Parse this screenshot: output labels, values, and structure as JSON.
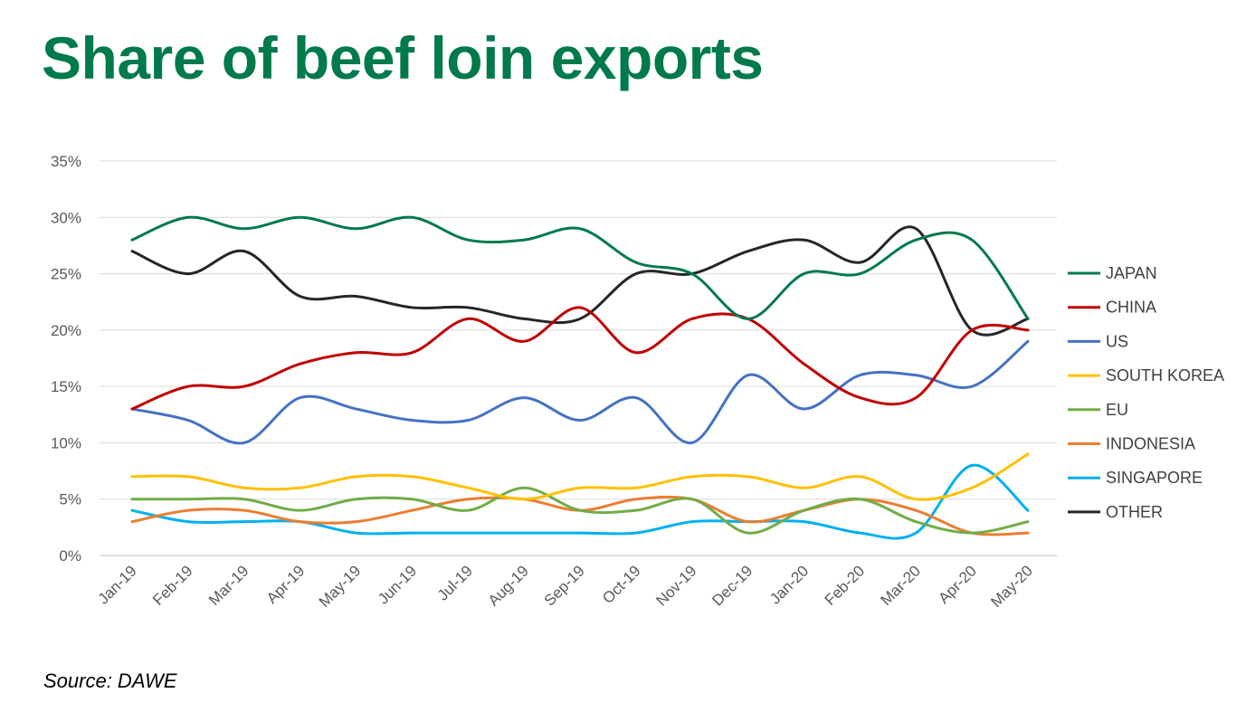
{
  "title": "Share of beef loin exports",
  "source": "Source: DAWE",
  "chart_data": {
    "type": "line",
    "title": "Share of beef loin exports",
    "xlabel": "",
    "ylabel": "",
    "ylim": [
      0,
      35
    ],
    "y_ticks": [
      "0%",
      "5%",
      "10%",
      "15%",
      "20%",
      "25%",
      "30%",
      "35%"
    ],
    "y_tick_values": [
      0,
      5,
      10,
      15,
      20,
      25,
      30,
      35
    ],
    "grid": true,
    "legend_position": "right",
    "categories": [
      "Jan-19",
      "Feb-19",
      "Mar-19",
      "Apr-19",
      "May-19",
      "Jun-19",
      "Jul-19",
      "Aug-19",
      "Sep-19",
      "Oct-19",
      "Nov-19",
      "Dec-19",
      "Jan-20",
      "Feb-20",
      "Mar-20",
      "Apr-20",
      "May-20"
    ],
    "series": [
      {
        "name": "JAPAN",
        "color": "#007A4B",
        "values": [
          28,
          30,
          29,
          30,
          29,
          30,
          28,
          28,
          29,
          26,
          25,
          21,
          25,
          25,
          28,
          28,
          21
        ]
      },
      {
        "name": "CHINA",
        "color": "#C00000",
        "values": [
          13,
          15,
          15,
          17,
          18,
          18,
          21,
          19,
          22,
          18,
          21,
          21,
          17,
          14,
          14,
          20,
          20
        ]
      },
      {
        "name": "US",
        "color": "#4472C4",
        "values": [
          13,
          12,
          10,
          14,
          13,
          12,
          12,
          14,
          12,
          14,
          10,
          16,
          13,
          16,
          16,
          15,
          19
        ]
      },
      {
        "name": "SOUTH KOREA",
        "color": "#FFC000",
        "values": [
          7,
          7,
          6,
          6,
          7,
          7,
          6,
          5,
          6,
          6,
          7,
          7,
          6,
          7,
          5,
          6,
          9
        ]
      },
      {
        "name": "EU",
        "color": "#70AD47",
        "values": [
          5,
          5,
          5,
          4,
          5,
          5,
          4,
          6,
          4,
          4,
          5,
          2,
          4,
          5,
          3,
          2,
          3
        ]
      },
      {
        "name": "INDONESIA",
        "color": "#ED7D31",
        "values": [
          3,
          4,
          4,
          3,
          3,
          4,
          5,
          5,
          4,
          5,
          5,
          3,
          4,
          5,
          4,
          2,
          2
        ]
      },
      {
        "name": "SINGAPORE",
        "color": "#00B0F0",
        "values": [
          4,
          3,
          3,
          3,
          2,
          2,
          2,
          2,
          2,
          2,
          3,
          3,
          3,
          2,
          2,
          8,
          4
        ]
      },
      {
        "name": "OTHER",
        "color": "#262626",
        "values": [
          27,
          25,
          27,
          23,
          23,
          22,
          22,
          21,
          21,
          25,
          25,
          27,
          28,
          26,
          29,
          20,
          21
        ]
      }
    ]
  }
}
